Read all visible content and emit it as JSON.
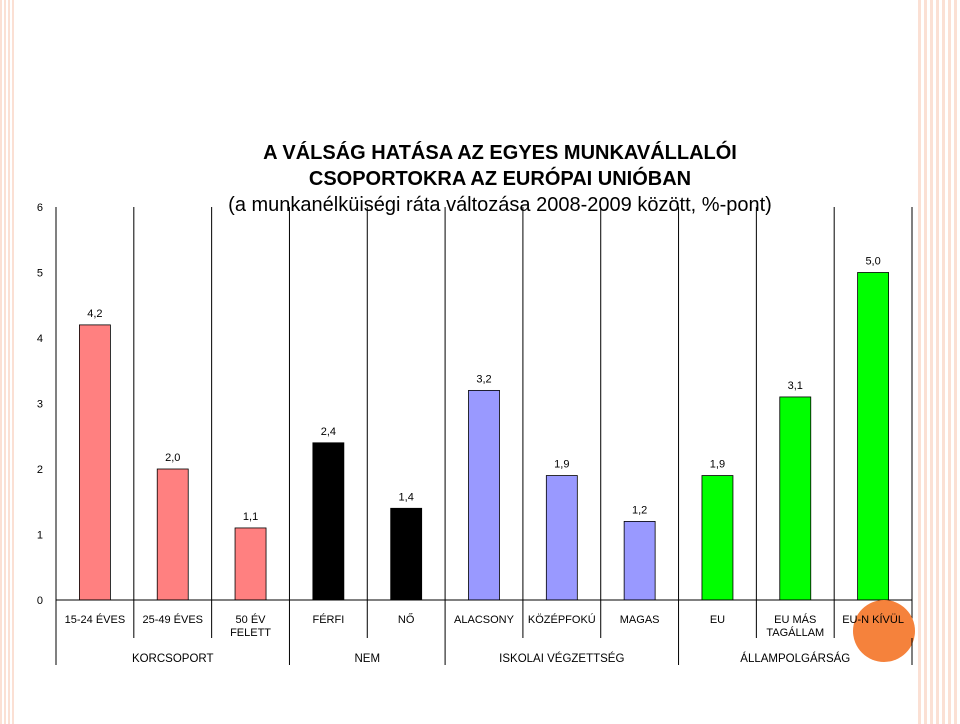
{
  "chart_data": {
    "type": "bar",
    "title_lines": [
      "A VÁLSÁG HATÁSA AZ EGYES MUNKAVÁLLALÓI",
      "CSOPORTOKRA AZ EURÓPAI UNIÓBAN"
    ],
    "subtitle": "(a munkanélküiségi ráta változása 2008-2009 között, %-pont)",
    "ylim": [
      0,
      6
    ],
    "yticks": [
      "0",
      "1",
      "2",
      "3",
      "4",
      "5",
      "6"
    ],
    "categories": [
      [
        "15-24 ÉVES"
      ],
      [
        "25-49 ÉVES"
      ],
      [
        "50 ÉV",
        "FELETT"
      ],
      [
        "FÉRFI"
      ],
      [
        "NŐ"
      ],
      [
        "ALACSONY"
      ],
      [
        "KÖZÉPFOKÚ"
      ],
      [
        "MAGAS"
      ],
      [
        "EU"
      ],
      [
        "EU MÁS",
        "TAGÁLLAM"
      ],
      [
        "EU-N KÍVÜL"
      ]
    ],
    "values": [
      4.2,
      2.0,
      1.1,
      2.4,
      1.4,
      3.2,
      1.9,
      1.2,
      1.9,
      3.1,
      5.0
    ],
    "value_labels": [
      "4,2",
      "2,0",
      "1,1",
      "2,4",
      "1,4",
      "3,2",
      "1,9",
      "1,2",
      "1,9",
      "3,1",
      "5,0"
    ],
    "colors": [
      "#ff8080",
      "#ff8080",
      "#ff8080",
      "#000000",
      "#000000",
      "#9999ff",
      "#9999ff",
      "#9999ff",
      "#00ff00",
      "#00ff00",
      "#00ff00"
    ],
    "groups": [
      {
        "label": "KORCSOPORT",
        "span": [
          0,
          2
        ]
      },
      {
        "label": "NEM",
        "span": [
          3,
          4
        ]
      },
      {
        "label": "ISKOLAI VÉGZETTSÉG",
        "span": [
          5,
          7
        ]
      },
      {
        "label": "ÁLLAMPOLGÁRSÁG",
        "span": [
          8,
          10
        ]
      }
    ],
    "legend": "none",
    "grid": false
  },
  "decor": {
    "marker_color": "#f5823c"
  }
}
